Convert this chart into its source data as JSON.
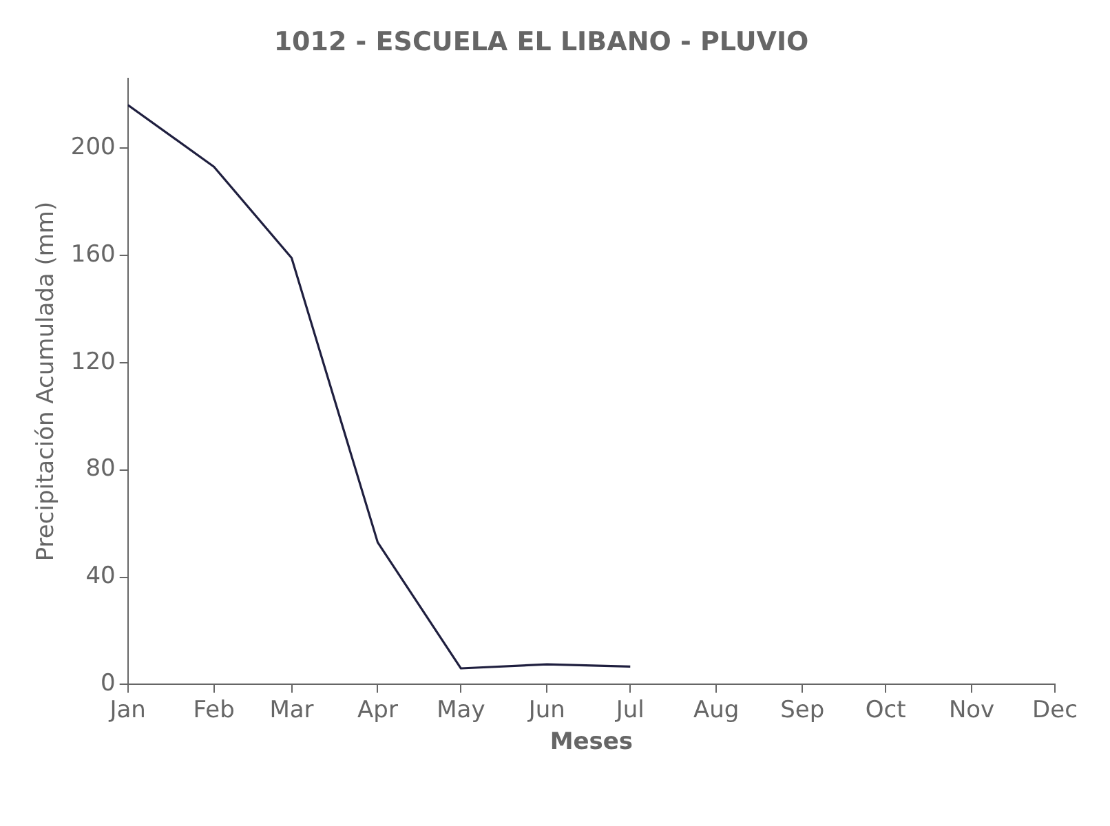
{
  "chart_data": {
    "type": "line",
    "title": "1012 - ESCUELA EL LIBANO - PLUVIO",
    "xlabel": "Meses",
    "ylabel": "Precipitación Acumulada (mm)",
    "x": [
      "--01-01",
      "--02-01",
      "--03-01",
      "--04-01",
      "--05-01",
      "--06-01",
      "--07-01"
    ],
    "series": [
      {
        "color": "#1f1f3f",
        "values": [
          216,
          193,
          159,
          53,
          6,
          7.5,
          6.7
        ]
      }
    ],
    "xlim": [
      "--01-01",
      "--12-01"
    ],
    "xticks": [
      {
        "value": "--01-01",
        "label": "Jan"
      },
      {
        "value": "--02-01",
        "label": "Feb"
      },
      {
        "value": "--03-01",
        "label": "Mar"
      },
      {
        "value": "--04-01",
        "label": "Apr"
      },
      {
        "value": "--05-01",
        "label": "May"
      },
      {
        "value": "--06-01",
        "label": "Jun"
      },
      {
        "value": "--07-01",
        "label": "Jul"
      },
      {
        "value": "--08-01",
        "label": "Aug"
      },
      {
        "value": "--09-01",
        "label": "Sep"
      },
      {
        "value": "--10-01",
        "label": "Oct"
      },
      {
        "value": "--11-01",
        "label": "Nov"
      },
      {
        "value": "--12-01",
        "label": "Dec"
      }
    ],
    "ylim": [
      0,
      226
    ],
    "yticks": [
      0,
      40,
      80,
      120,
      160,
      200
    ],
    "grid": false,
    "legend": false,
    "marker": "none",
    "line_style": "solid"
  }
}
